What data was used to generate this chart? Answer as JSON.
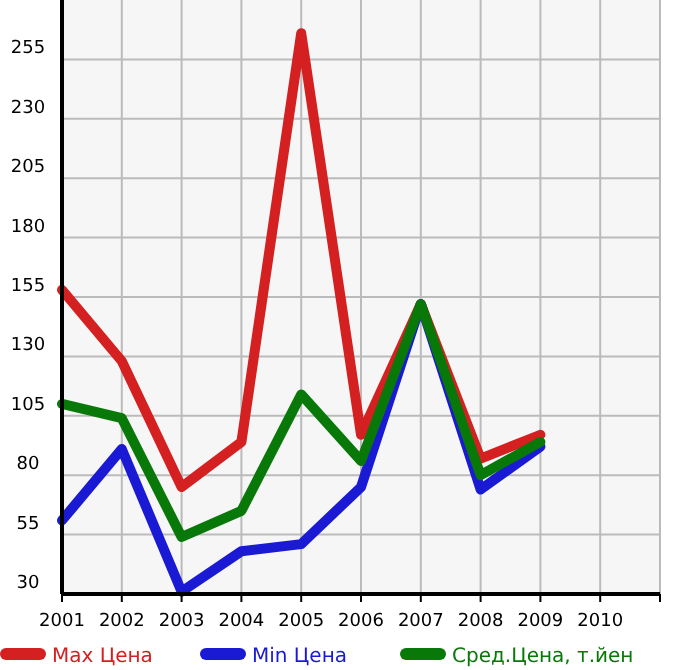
{
  "chart_data": {
    "type": "line",
    "x": [
      2001,
      2002,
      2003,
      2004,
      2005,
      2006,
      2007,
      2008,
      2009
    ],
    "xlim": [
      2001,
      2011
    ],
    "xticks": [
      2001,
      2002,
      2003,
      2004,
      2005,
      2006,
      2007,
      2008,
      2009,
      2010
    ],
    "ylim": [
      30,
      280
    ],
    "yticks": [
      30,
      55,
      80,
      105,
      130,
      155,
      180,
      205,
      230,
      255
    ],
    "grid": true,
    "legend": "bottom",
    "marker": "none",
    "line_style": "solid",
    "series": [
      {
        "name": "Max Цена",
        "color": "#d42020",
        "values": [
          158,
          128,
          75,
          94,
          266,
          97,
          152,
          87,
          97
        ]
      },
      {
        "name": "Min Цена",
        "color": "#1a1ad4",
        "values": [
          61,
          91,
          31,
          48,
          51,
          75,
          152,
          74,
          92
        ]
      },
      {
        "name": "Сред.Цена, т.йен",
        "color": "#087808",
        "values": [
          110,
          104,
          54,
          65,
          114,
          86,
          152,
          80,
          94
        ]
      }
    ]
  }
}
